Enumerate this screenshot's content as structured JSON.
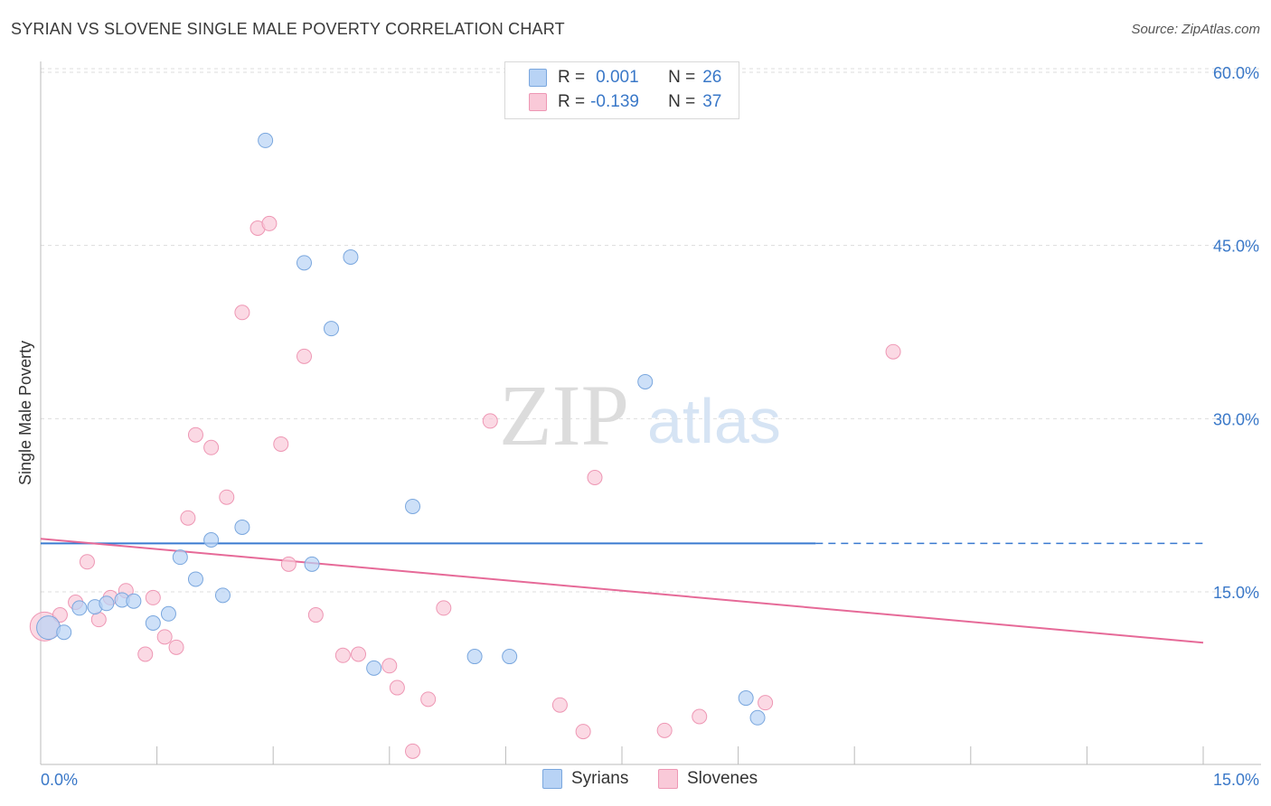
{
  "header": {
    "title": "SYRIAN VS SLOVENE SINGLE MALE POVERTY CORRELATION CHART",
    "source": "Source: ZipAtlas.com"
  },
  "legend": {
    "rows": [
      {
        "r_label": "R =",
        "r_value": "0.001",
        "n_label": "N =",
        "n_value": "26"
      },
      {
        "r_label": "R =",
        "r_value": "-0.139",
        "n_label": "N =",
        "n_value": "37"
      }
    ]
  },
  "bottom_legend": {
    "items": [
      {
        "label": "Syrians"
      },
      {
        "label": "Slovenes"
      }
    ]
  },
  "watermark": {
    "zip": "ZIP",
    "atlas": "atlas"
  },
  "colors": {
    "syrians_fill": "#b8d3f5",
    "syrians_stroke": "#7aa7de",
    "syrians_line": "#3a7ad0",
    "slovenes_fill": "#f9c9d8",
    "slovenes_stroke": "#ee97b4",
    "slovenes_line": "#e66a98",
    "tick_label": "#3a78c8",
    "grid": "#dddddd"
  },
  "chart_data": {
    "type": "scatter",
    "title": "SYRIAN VS SLOVENE SINGLE MALE POVERTY CORRELATION CHART",
    "xlabel": "",
    "ylabel": "Single Male Poverty",
    "xlim": [
      0,
      15
    ],
    "ylim": [
      0,
      62
    ],
    "x_tick_labels": [
      "0.0%",
      "15.0%"
    ],
    "y_ticks": [
      15,
      30,
      45,
      60
    ],
    "y_tick_labels": [
      "15.0%",
      "30.0%",
      "45.0%",
      "60.0%"
    ],
    "grid": true,
    "legend_position": "top-center",
    "series": [
      {
        "name": "Syrians",
        "r": 0.001,
        "n": 26,
        "points": [
          [
            0.1,
            11.9
          ],
          [
            0.3,
            11.5
          ],
          [
            0.5,
            13.6
          ],
          [
            0.7,
            13.7
          ],
          [
            0.85,
            14.0
          ],
          [
            1.05,
            14.3
          ],
          [
            1.2,
            14.2
          ],
          [
            1.45,
            12.3
          ],
          [
            1.65,
            13.1
          ],
          [
            1.8,
            18.0
          ],
          [
            2.0,
            16.1
          ],
          [
            2.2,
            19.5
          ],
          [
            2.35,
            14.7
          ],
          [
            2.6,
            20.6
          ],
          [
            2.9,
            54.1
          ],
          [
            3.4,
            43.5
          ],
          [
            3.5,
            17.4
          ],
          [
            3.75,
            37.8
          ],
          [
            4.0,
            44.0
          ],
          [
            4.3,
            8.4
          ],
          [
            4.8,
            22.4
          ],
          [
            5.6,
            9.4
          ],
          [
            6.05,
            9.4
          ],
          [
            7.8,
            33.2
          ],
          [
            9.1,
            5.8
          ],
          [
            9.25,
            4.1
          ]
        ],
        "trend": {
          "x": [
            0,
            10
          ],
          "y": [
            19.2,
            19.2
          ],
          "dashed_extension_to": 15
        }
      },
      {
        "name": "Slovenes",
        "r": -0.139,
        "n": 37,
        "points": [
          [
            0.05,
            12.0
          ],
          [
            0.25,
            13.0
          ],
          [
            0.45,
            14.1
          ],
          [
            0.6,
            17.6
          ],
          [
            0.75,
            12.6
          ],
          [
            0.9,
            14.5
          ],
          [
            1.1,
            15.1
          ],
          [
            1.35,
            9.6
          ],
          [
            1.45,
            14.5
          ],
          [
            1.6,
            11.1
          ],
          [
            1.75,
            10.2
          ],
          [
            1.9,
            21.4
          ],
          [
            2.0,
            28.6
          ],
          [
            2.2,
            27.5
          ],
          [
            2.4,
            23.2
          ],
          [
            2.6,
            39.2
          ],
          [
            2.8,
            46.5
          ],
          [
            2.95,
            46.9
          ],
          [
            3.1,
            27.8
          ],
          [
            3.2,
            17.4
          ],
          [
            3.4,
            35.4
          ],
          [
            3.55,
            13.0
          ],
          [
            3.9,
            9.5
          ],
          [
            4.1,
            9.6
          ],
          [
            4.5,
            8.6
          ],
          [
            4.6,
            6.7
          ],
          [
            4.8,
            1.2
          ],
          [
            5.0,
            5.7
          ],
          [
            5.2,
            13.6
          ],
          [
            5.8,
            29.8
          ],
          [
            6.7,
            5.2
          ],
          [
            7.0,
            2.9
          ],
          [
            7.15,
            24.9
          ],
          [
            8.05,
            3.0
          ],
          [
            8.5,
            4.2
          ],
          [
            9.35,
            5.4
          ],
          [
            11.0,
            35.8
          ]
        ],
        "trend": {
          "x": [
            0,
            15
          ],
          "y": [
            19.6,
            10.6
          ]
        }
      }
    ]
  }
}
